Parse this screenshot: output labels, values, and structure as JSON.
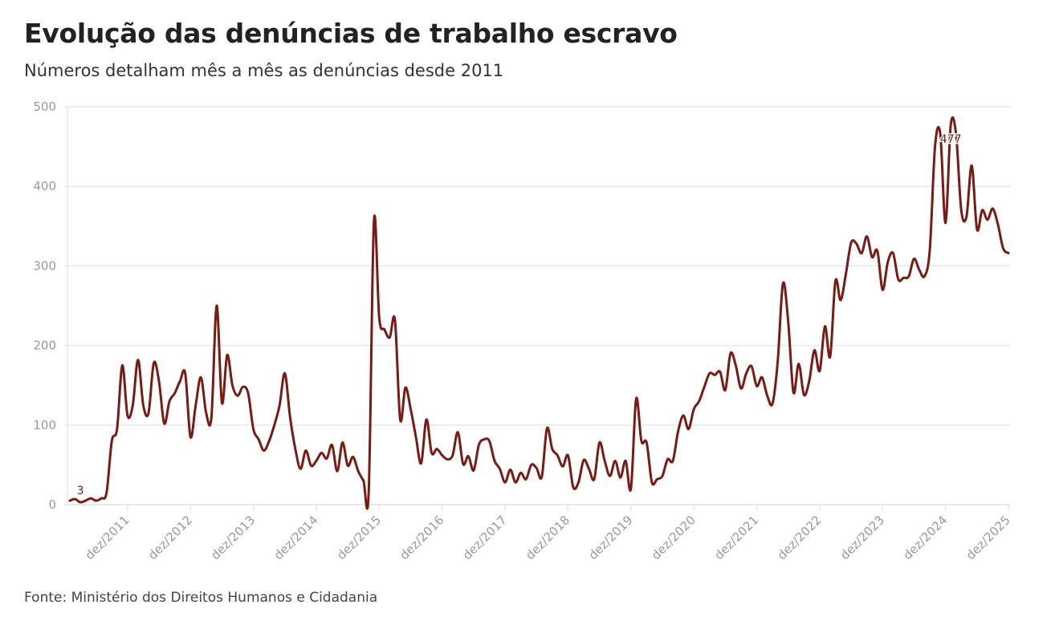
{
  "title": "Evolução das denúncias de trabalho escravo",
  "subtitle": "Números detalham mês a mês as denúncias desde 2011",
  "source": "Fonte: Ministério dos Direitos Humanos e Cidadania",
  "colors": {
    "line": "#7a1a12",
    "grid": "#e8e8e8",
    "tick_text": "#999999"
  },
  "chart_data": {
    "type": "line",
    "title": "Evolução das denúncias de trabalho escravo",
    "xlabel": "",
    "ylabel": "",
    "x_start": "jan/2011",
    "x_end": "dez/2025",
    "x_frequency": "monthly",
    "x_tick_labels": [
      "dez/2011",
      "dez/2012",
      "dez/2013",
      "dez/2014",
      "dez/2015",
      "dez/2016",
      "dez/2017",
      "dez/2018",
      "dez/2019",
      "dez/2020",
      "dez/2021",
      "dez/2022",
      "dez/2023",
      "dez/2024",
      "dez/2025"
    ],
    "y_ticks": [
      0,
      100,
      200,
      300,
      400,
      500
    ],
    "ylim": [
      0,
      500
    ],
    "grid": "horizontal",
    "annotations": [
      {
        "label": "3",
        "at": "mar/2011",
        "value": 3
      },
      {
        "label": "477",
        "at": "jan/2025",
        "value": 477
      }
    ],
    "values": [
      5,
      7,
      3,
      5,
      8,
      5,
      8,
      15,
      80,
      95,
      175,
      112,
      125,
      182,
      125,
      115,
      178,
      155,
      102,
      130,
      140,
      155,
      165,
      85,
      125,
      160,
      115,
      110,
      250,
      128,
      188,
      150,
      137,
      148,
      140,
      95,
      82,
      68,
      80,
      100,
      125,
      165,
      110,
      70,
      45,
      68,
      49,
      55,
      65,
      58,
      75,
      42,
      78,
      49,
      60,
      42,
      30,
      17,
      357,
      235,
      220,
      210,
      232,
      107,
      147,
      120,
      85,
      52,
      107,
      65,
      70,
      62,
      57,
      62,
      91,
      51,
      61,
      43,
      75,
      82,
      80,
      55,
      45,
      28,
      44,
      28,
      40,
      32,
      50,
      46,
      35,
      96,
      70,
      62,
      48,
      62,
      22,
      28,
      56,
      45,
      32,
      78,
      55,
      36,
      55,
      34,
      55,
      20,
      133,
      80,
      78,
      28,
      32,
      36,
      57,
      55,
      92,
      112,
      95,
      120,
      130,
      148,
      165,
      163,
      167,
      144,
      190,
      175,
      146,
      165,
      174,
      149,
      160,
      137,
      127,
      180,
      278,
      230,
      141,
      177,
      138,
      155,
      194,
      168,
      224,
      186,
      281,
      257,
      290,
      329,
      328,
      316,
      337,
      311,
      319,
      270,
      305,
      316,
      283,
      285,
      287,
      309,
      295,
      287,
      320,
      450,
      466,
      354,
      477,
      466,
      370,
      362,
      426,
      346,
      370,
      358,
      372,
      352,
      322,
      316
    ]
  }
}
